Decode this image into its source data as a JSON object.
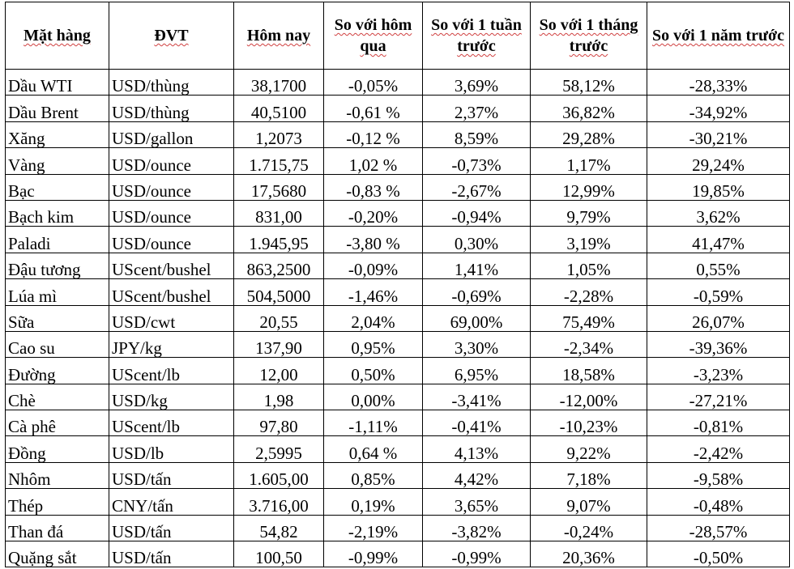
{
  "headers": [
    "Mặt hàng",
    "ĐVT",
    "Hôm nay",
    "So với hôm qua",
    "So với 1 tuần trước",
    "So với 1 tháng trước",
    "So với 1 năm trước"
  ],
  "rows": [
    [
      "Dầu WTI",
      "USD/thùng",
      "38,1700",
      "-0,05%",
      "3,69%",
      "58,12%",
      "-28,33%"
    ],
    [
      "Dầu Brent",
      "USD/thùng",
      "40,5100",
      "-0,61 %",
      "2,37%",
      "36,82%",
      "-34,92%"
    ],
    [
      "Xăng",
      "USD/gallon",
      "1,2073",
      "-0,12 %",
      "8,59%",
      "29,28%",
      "-30,21%"
    ],
    [
      "Vàng",
      "USD/ounce",
      "1.715,75",
      "1,02 %",
      "-0,73%",
      "1,17%",
      "29,24%"
    ],
    [
      "Bạc",
      "USD/ounce",
      "17,5680",
      "-0,83 %",
      "-2,67%",
      "12,99%",
      "19,85%"
    ],
    [
      "Bạch kim",
      "USD/ounce",
      "831,00",
      "-0,20%",
      "-0,94%",
      "9,79%",
      "3,62%"
    ],
    [
      "Paladi",
      "USD/ounce",
      "1.945,95",
      "-3,80 %",
      "0,30%",
      "3,19%",
      "41,47%"
    ],
    [
      "Đậu tương",
      "UScent/bushel",
      "863,2500",
      "-0,09%",
      "1,41%",
      "1,05%",
      "0,55%"
    ],
    [
      "Lúa mì",
      "UScent/bushel",
      "504,5000",
      "-1,46%",
      "-0,69%",
      "-2,28%",
      "-0,59%"
    ],
    [
      "Sữa",
      "USD/cwt",
      "20,55",
      "2,04%",
      "69,00%",
      "75,49%",
      "26,07%"
    ],
    [
      "Cao su",
      "JPY/kg",
      "137,90",
      "0,95%",
      "3,30%",
      "-2,34%",
      "-39,36%"
    ],
    [
      "Đường",
      "UScent/lb",
      "12,00",
      "0,50%",
      "6,95%",
      "18,58%",
      "-3,23%"
    ],
    [
      "Chè",
      "USD/kg",
      "1,98",
      "0,00%",
      "-3,41%",
      "-12,00%",
      "-27,21%"
    ],
    [
      "Cà phê",
      "UScent/lb",
      "97,80",
      "-1,11%",
      "-0,41%",
      "-10,23%",
      "-0,81%"
    ],
    [
      "Đồng",
      "USD/lb",
      "2,5995",
      "0,64 %",
      "4,13%",
      "9,22%",
      "-2,42%"
    ],
    [
      "Nhôm",
      "USD/tấn",
      "1.605,00",
      "0,85%",
      "4,42%",
      "7,18%",
      "-9,58%"
    ],
    [
      "Thép",
      "CNY/tấn",
      "3.716,00",
      "0,19%",
      "3,65%",
      "9,07%",
      "-0,48%"
    ],
    [
      "Than đá",
      "USD/tấn",
      "54,82",
      "-2,19%",
      "-3,82%",
      "-0,24%",
      "-28,57%"
    ],
    [
      "Quặng sắt",
      "USD/tấn",
      "100,50",
      "-0,99%",
      "-0,99%",
      "20,36%",
      "-0,50%"
    ]
  ]
}
